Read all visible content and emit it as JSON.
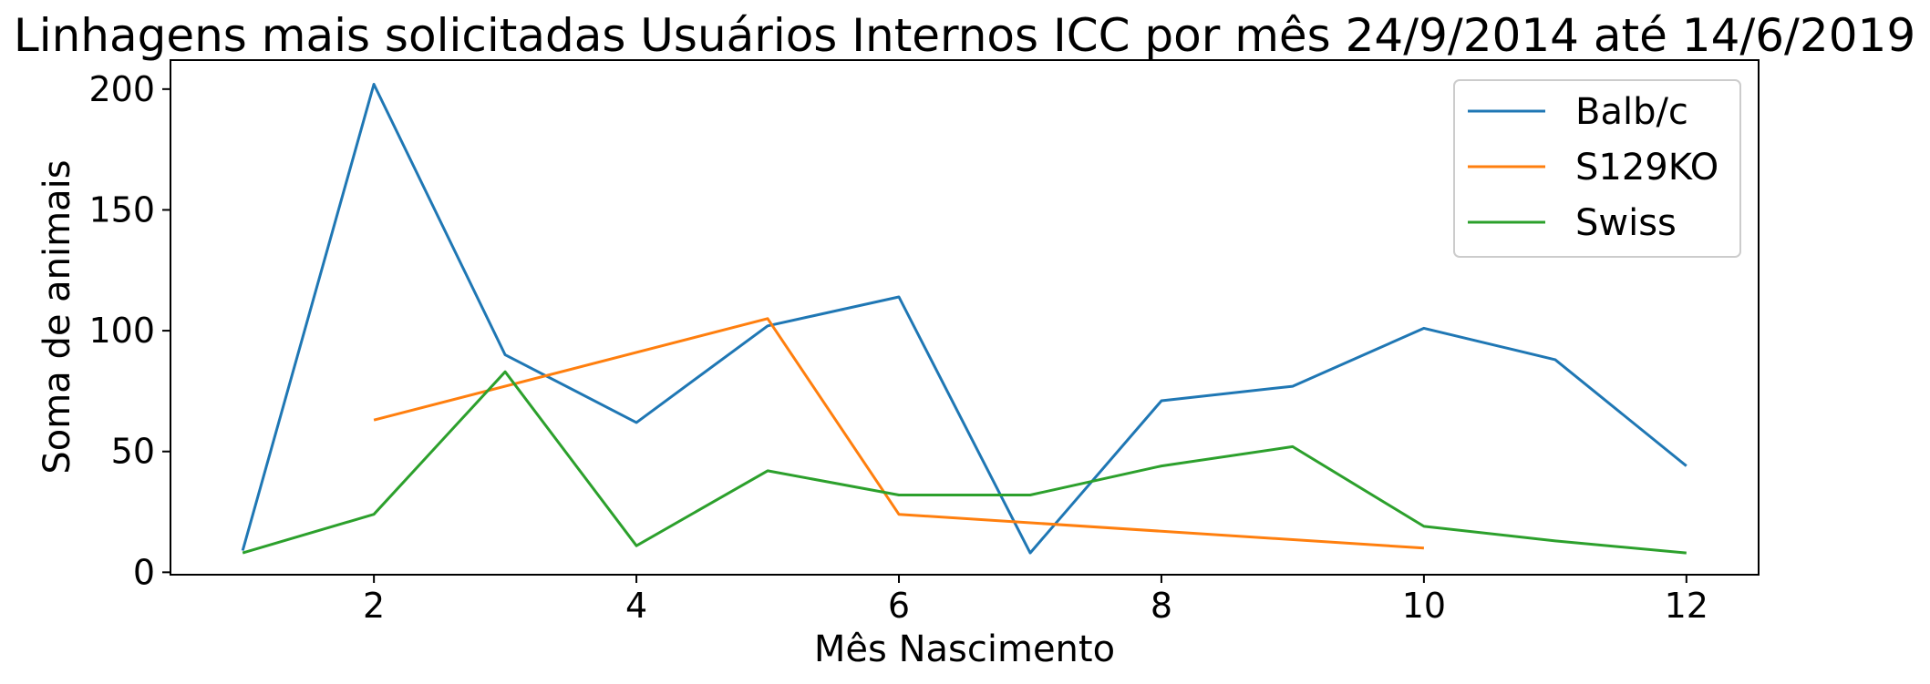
{
  "chart_data": {
    "type": "line",
    "title": "Linhagens mais solicitadas Usuários Internos ICC por mês 24/9/2014 até 14/6/2019",
    "xlabel": "Mês Nascimento",
    "ylabel": "Soma de animais",
    "xlim": [
      0.45,
      12.55
    ],
    "ylim": [
      -1,
      212
    ],
    "xticks": [
      2,
      4,
      6,
      8,
      10,
      12
    ],
    "yticks": [
      0,
      50,
      100,
      150,
      200
    ],
    "grid": false,
    "legend_position": "top-right",
    "series": [
      {
        "name": "Balb/c",
        "color": "#1f77b4",
        "x": [
          1,
          2,
          3,
          4,
          5,
          6,
          7,
          8,
          9,
          10,
          11,
          12
        ],
        "values": [
          9,
          202,
          90,
          62,
          102,
          114,
          8,
          71,
          77,
          101,
          88,
          44
        ]
      },
      {
        "name": "S129KO",
        "color": "#ff7f0e",
        "x": [
          2,
          5,
          6,
          10
        ],
        "values": [
          63,
          105,
          24,
          10
        ]
      },
      {
        "name": "Swiss",
        "color": "#2ca02c",
        "x": [
          1,
          2,
          3,
          4,
          5,
          6,
          7,
          8,
          9,
          10,
          11,
          12
        ],
        "values": [
          8,
          24,
          83,
          11,
          42,
          32,
          32,
          44,
          52,
          19,
          13,
          8
        ]
      }
    ]
  }
}
